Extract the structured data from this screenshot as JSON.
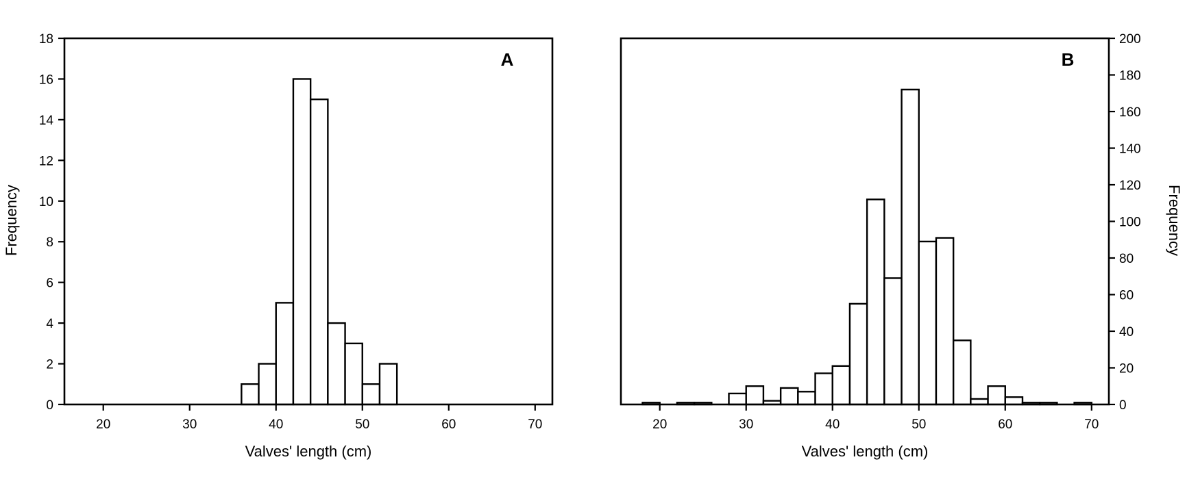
{
  "chart_data": [
    {
      "type": "bar",
      "panel_label": "A",
      "xlabel": "Valves' length (cm)",
      "ylabel": "Frequency",
      "y_axis_side": "left",
      "xlim": [
        15.5,
        72
      ],
      "ylim": [
        0,
        18
      ],
      "x_ticks": [
        20,
        30,
        40,
        50,
        60,
        70
      ],
      "y_ticks": [
        0,
        2,
        4,
        6,
        8,
        10,
        12,
        14,
        16,
        18
      ],
      "bin_width": 2,
      "bin_starts": [
        36,
        38,
        40,
        42,
        44,
        46,
        48,
        50,
        52
      ],
      "values": [
        1,
        2,
        5,
        16,
        15,
        4,
        3,
        1,
        2
      ],
      "grid": false
    },
    {
      "type": "bar",
      "panel_label": "B",
      "xlabel": "Valves' length (cm)",
      "ylabel": "Frequency",
      "y_axis_side": "right",
      "xlim": [
        15.5,
        72
      ],
      "ylim": [
        0,
        200
      ],
      "x_ticks": [
        20,
        30,
        40,
        50,
        60,
        70
      ],
      "y_ticks": [
        0,
        20,
        40,
        60,
        80,
        100,
        120,
        140,
        160,
        180,
        200
      ],
      "bin_width": 2,
      "bin_starts": [
        18,
        20,
        22,
        24,
        26,
        28,
        30,
        32,
        34,
        36,
        38,
        40,
        42,
        44,
        46,
        48,
        50,
        52,
        54,
        56,
        58,
        60,
        62,
        64,
        66,
        68
      ],
      "values": [
        1,
        0,
        1,
        1,
        0,
        6,
        10,
        2,
        9,
        7,
        17,
        21,
        55,
        112,
        69,
        172,
        89,
        91,
        35,
        3,
        10,
        4,
        1,
        1,
        0,
        1
      ],
      "grid": false
    }
  ]
}
